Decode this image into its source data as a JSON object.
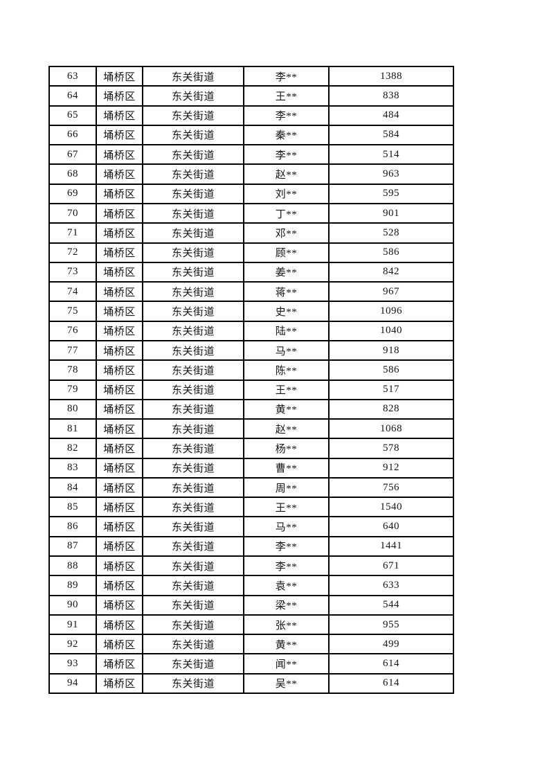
{
  "page": {
    "background_color": "#ffffff",
    "border_color": "#000000",
    "text_color": "#141414"
  },
  "table": {
    "visible_row_range": "63-94",
    "columns_semantic": [
      "row-number",
      "district",
      "subdistrict",
      "masked-name",
      "value"
    ],
    "rows": [
      [
        "63",
        "埇桥区",
        "东关街道",
        "李**",
        "1388"
      ],
      [
        "64",
        "埇桥区",
        "东关街道",
        "王**",
        "838"
      ],
      [
        "65",
        "埇桥区",
        "东关街道",
        "李**",
        "484"
      ],
      [
        "66",
        "埇桥区",
        "东关街道",
        "秦**",
        "584"
      ],
      [
        "67",
        "埇桥区",
        "东关街道",
        "李**",
        "514"
      ],
      [
        "68",
        "埇桥区",
        "东关街道",
        "赵**",
        "963"
      ],
      [
        "69",
        "埇桥区",
        "东关街道",
        "刘**",
        "595"
      ],
      [
        "70",
        "埇桥区",
        "东关街道",
        "丁**",
        "901"
      ],
      [
        "71",
        "埇桥区",
        "东关街道",
        "邓**",
        "528"
      ],
      [
        "72",
        "埇桥区",
        "东关街道",
        "顾**",
        "586"
      ],
      [
        "73",
        "埇桥区",
        "东关街道",
        "姜**",
        "842"
      ],
      [
        "74",
        "埇桥区",
        "东关街道",
        "蒋**",
        "967"
      ],
      [
        "75",
        "埇桥区",
        "东关街道",
        "史**",
        "1096"
      ],
      [
        "76",
        "埇桥区",
        "东关街道",
        "陆**",
        "1040"
      ],
      [
        "77",
        "埇桥区",
        "东关街道",
        "马**",
        "918"
      ],
      [
        "78",
        "埇桥区",
        "东关街道",
        "陈**",
        "586"
      ],
      [
        "79",
        "埇桥区",
        "东关街道",
        "王**",
        "517"
      ],
      [
        "80",
        "埇桥区",
        "东关街道",
        "黄**",
        "828"
      ],
      [
        "81",
        "埇桥区",
        "东关街道",
        "赵**",
        "1068"
      ],
      [
        "82",
        "埇桥区",
        "东关街道",
        "杨**",
        "578"
      ],
      [
        "83",
        "埇桥区",
        "东关街道",
        "曹**",
        "912"
      ],
      [
        "84",
        "埇桥区",
        "东关街道",
        "周**",
        "756"
      ],
      [
        "85",
        "埇桥区",
        "东关街道",
        "王**",
        "1540"
      ],
      [
        "86",
        "埇桥区",
        "东关街道",
        "马**",
        "640"
      ],
      [
        "87",
        "埇桥区",
        "东关街道",
        "李**",
        "1441"
      ],
      [
        "88",
        "埇桥区",
        "东关街道",
        "李**",
        "671"
      ],
      [
        "89",
        "埇桥区",
        "东关街道",
        "袁**",
        "633"
      ],
      [
        "90",
        "埇桥区",
        "东关街道",
        "梁**",
        "544"
      ],
      [
        "91",
        "埇桥区",
        "东关街道",
        "张**",
        "955"
      ],
      [
        "92",
        "埇桥区",
        "东关街道",
        "黄**",
        "499"
      ],
      [
        "93",
        "埇桥区",
        "东关街道",
        "闻**",
        "614"
      ],
      [
        "94",
        "埇桥区",
        "东关街道",
        "吴**",
        "614"
      ]
    ]
  }
}
